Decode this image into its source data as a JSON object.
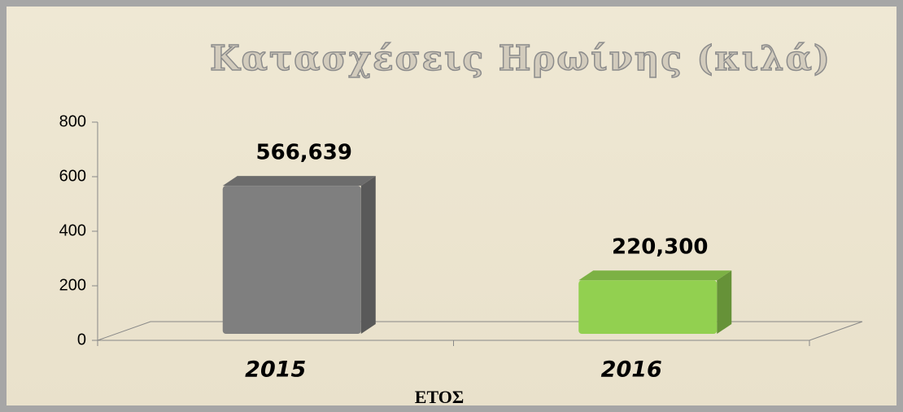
{
  "chart_data": {
    "type": "bar",
    "title": "Κατασχέσεις Ηρωίνης (κιλά)",
    "categories": [
      "2015",
      "2016"
    ],
    "values": [
      566.639,
      220.3
    ],
    "value_labels": [
      "566,639",
      "220,300"
    ],
    "colors": [
      "#7f7f7f",
      "#92d050"
    ],
    "x_label": "ΕΤΟΣ",
    "ylim": [
      0,
      800
    ],
    "yticks": [
      0,
      200,
      400,
      600,
      800
    ]
  }
}
